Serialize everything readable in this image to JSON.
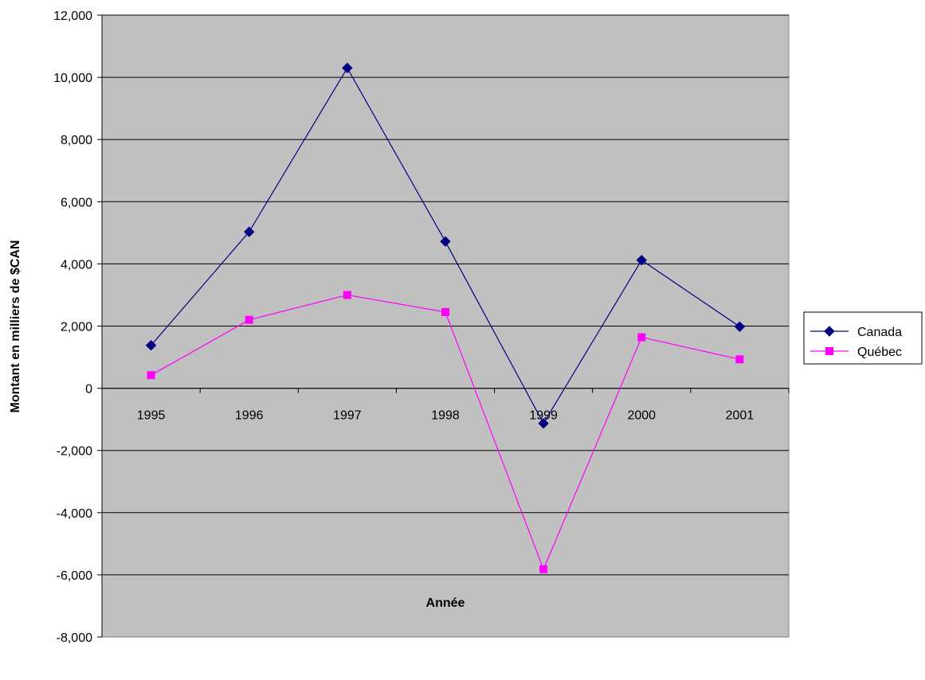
{
  "chart_data": {
    "type": "line",
    "title": "",
    "xlabel": "Année",
    "ylabel": "Montant en milliers de $CAN",
    "categories": [
      "1995",
      "1996",
      "1997",
      "1998",
      "1999",
      "2000",
      "2001"
    ],
    "ylim": [
      -8000,
      12000
    ],
    "yticks": [
      12000,
      10000,
      8000,
      6000,
      4000,
      2000,
      0,
      -2000,
      -4000,
      -6000,
      -8000
    ],
    "ytick_labels": [
      "12,000",
      "10,000",
      "8,000",
      "6,000",
      "4,000",
      "2,000",
      "0",
      "-2,000",
      "-4,000",
      "-6,000",
      "-8,000"
    ],
    "grid": true,
    "legend_position": "right",
    "plot_background": "#c0c0c0",
    "series": [
      {
        "name": "Canada",
        "marker": "diamond",
        "color": "#000080",
        "values": [
          1380,
          5030,
          10300,
          4720,
          -1130,
          4120,
          1980
        ]
      },
      {
        "name": "Québec",
        "marker": "square",
        "color": "#ff00ff",
        "values": [
          420,
          2200,
          3000,
          2450,
          -5820,
          1640,
          930
        ]
      }
    ]
  }
}
